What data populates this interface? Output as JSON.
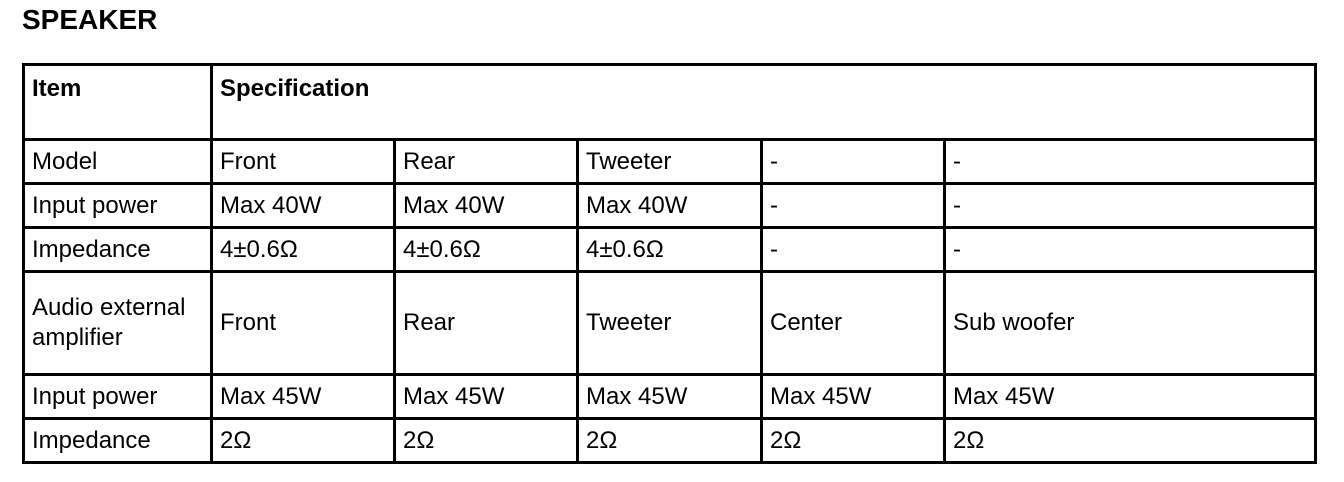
{
  "title": "SPEAKER",
  "header": {
    "item": "Item",
    "specification": "Specification"
  },
  "rows": [
    {
      "item": "Model",
      "values": [
        "Front",
        "Rear",
        "Tweeter",
        "-",
        "-"
      ]
    },
    {
      "item": "Input power",
      "values": [
        "Max 40W",
        "Max 40W",
        "Max 40W",
        "-",
        "-"
      ]
    },
    {
      "item": "Impedance",
      "values": [
        "4±0.6Ω",
        "4±0.6Ω",
        "4±0.6Ω",
        "-",
        "-"
      ]
    },
    {
      "item": "Audio external amplifier",
      "values": [
        "Front",
        "Rear",
        "Tweeter",
        "Center",
        "Sub woofer"
      ]
    },
    {
      "item": "Input power",
      "values": [
        "Max 45W",
        "Max 45W",
        "Max 45W",
        "Max 45W",
        "Max 45W"
      ]
    },
    {
      "item": "Impedance",
      "values": [
        "2Ω",
        "2Ω",
        "2Ω",
        "2Ω",
        "2Ω"
      ]
    }
  ]
}
